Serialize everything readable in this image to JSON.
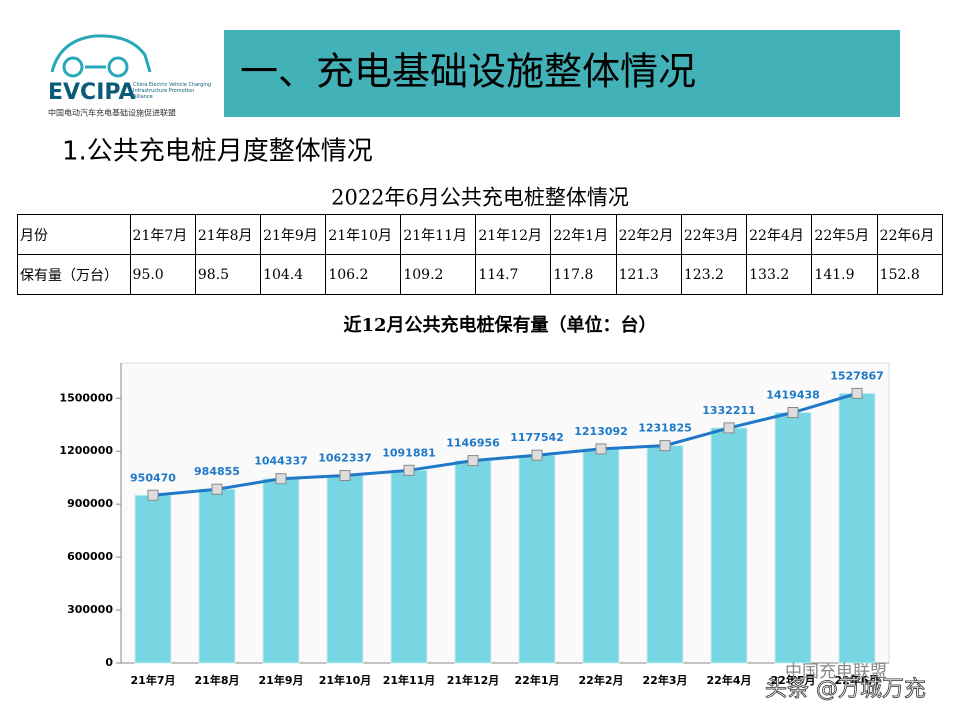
{
  "logo": {
    "name": "EVCIPA",
    "english": "China Electric Vehicle Charging Infrastructure Promotion Alliance",
    "chinese": "中国电动汽车充电基础设施促进联盟"
  },
  "header": {
    "title": "一、充电基础设施整体情况",
    "subtitle": "1.公共充电桩月度整体情况"
  },
  "table": {
    "title": "2022年6月公共充电桩整体情况",
    "header": [
      "月份",
      "21年7月",
      "21年8月",
      "21年9月",
      "21年10月",
      "21年11月",
      "21年12月",
      "22年1月",
      "22年2月",
      "22年3月",
      "22年4月",
      "22年5月",
      "22年6月"
    ],
    "rows": [
      [
        "保有量（万台）",
        "95.0",
        "98.5",
        "104.4",
        "106.2",
        "109.2",
        "114.7",
        "117.8",
        "121.3",
        "123.2",
        "133.2",
        "141.9",
        "152.8"
      ]
    ]
  },
  "chart_data": {
    "type": "bar",
    "title": "近12月公共充电桩保有量（单位：台）",
    "categories": [
      "21年7月",
      "21年8月",
      "21年9月",
      "21年10月",
      "21年11月",
      "21年12月",
      "22年1月",
      "22年2月",
      "22年3月",
      "22年4月",
      "22年5月",
      "22年6月"
    ],
    "values": [
      950470,
      984855,
      1044337,
      1062337,
      1091881,
      1146956,
      1177542,
      1213092,
      1231825,
      1332211,
      1419438,
      1527867
    ],
    "color": "#78d6e2",
    "line_color": "#1f78c8",
    "line_overlay": true,
    "ylim": [
      0,
      1700000
    ],
    "yticks": [
      0,
      300000,
      600000,
      900000,
      1200000,
      1500000
    ]
  },
  "watermark": {
    "source": "中国充电联盟",
    "author": "头条 @万城万充"
  }
}
